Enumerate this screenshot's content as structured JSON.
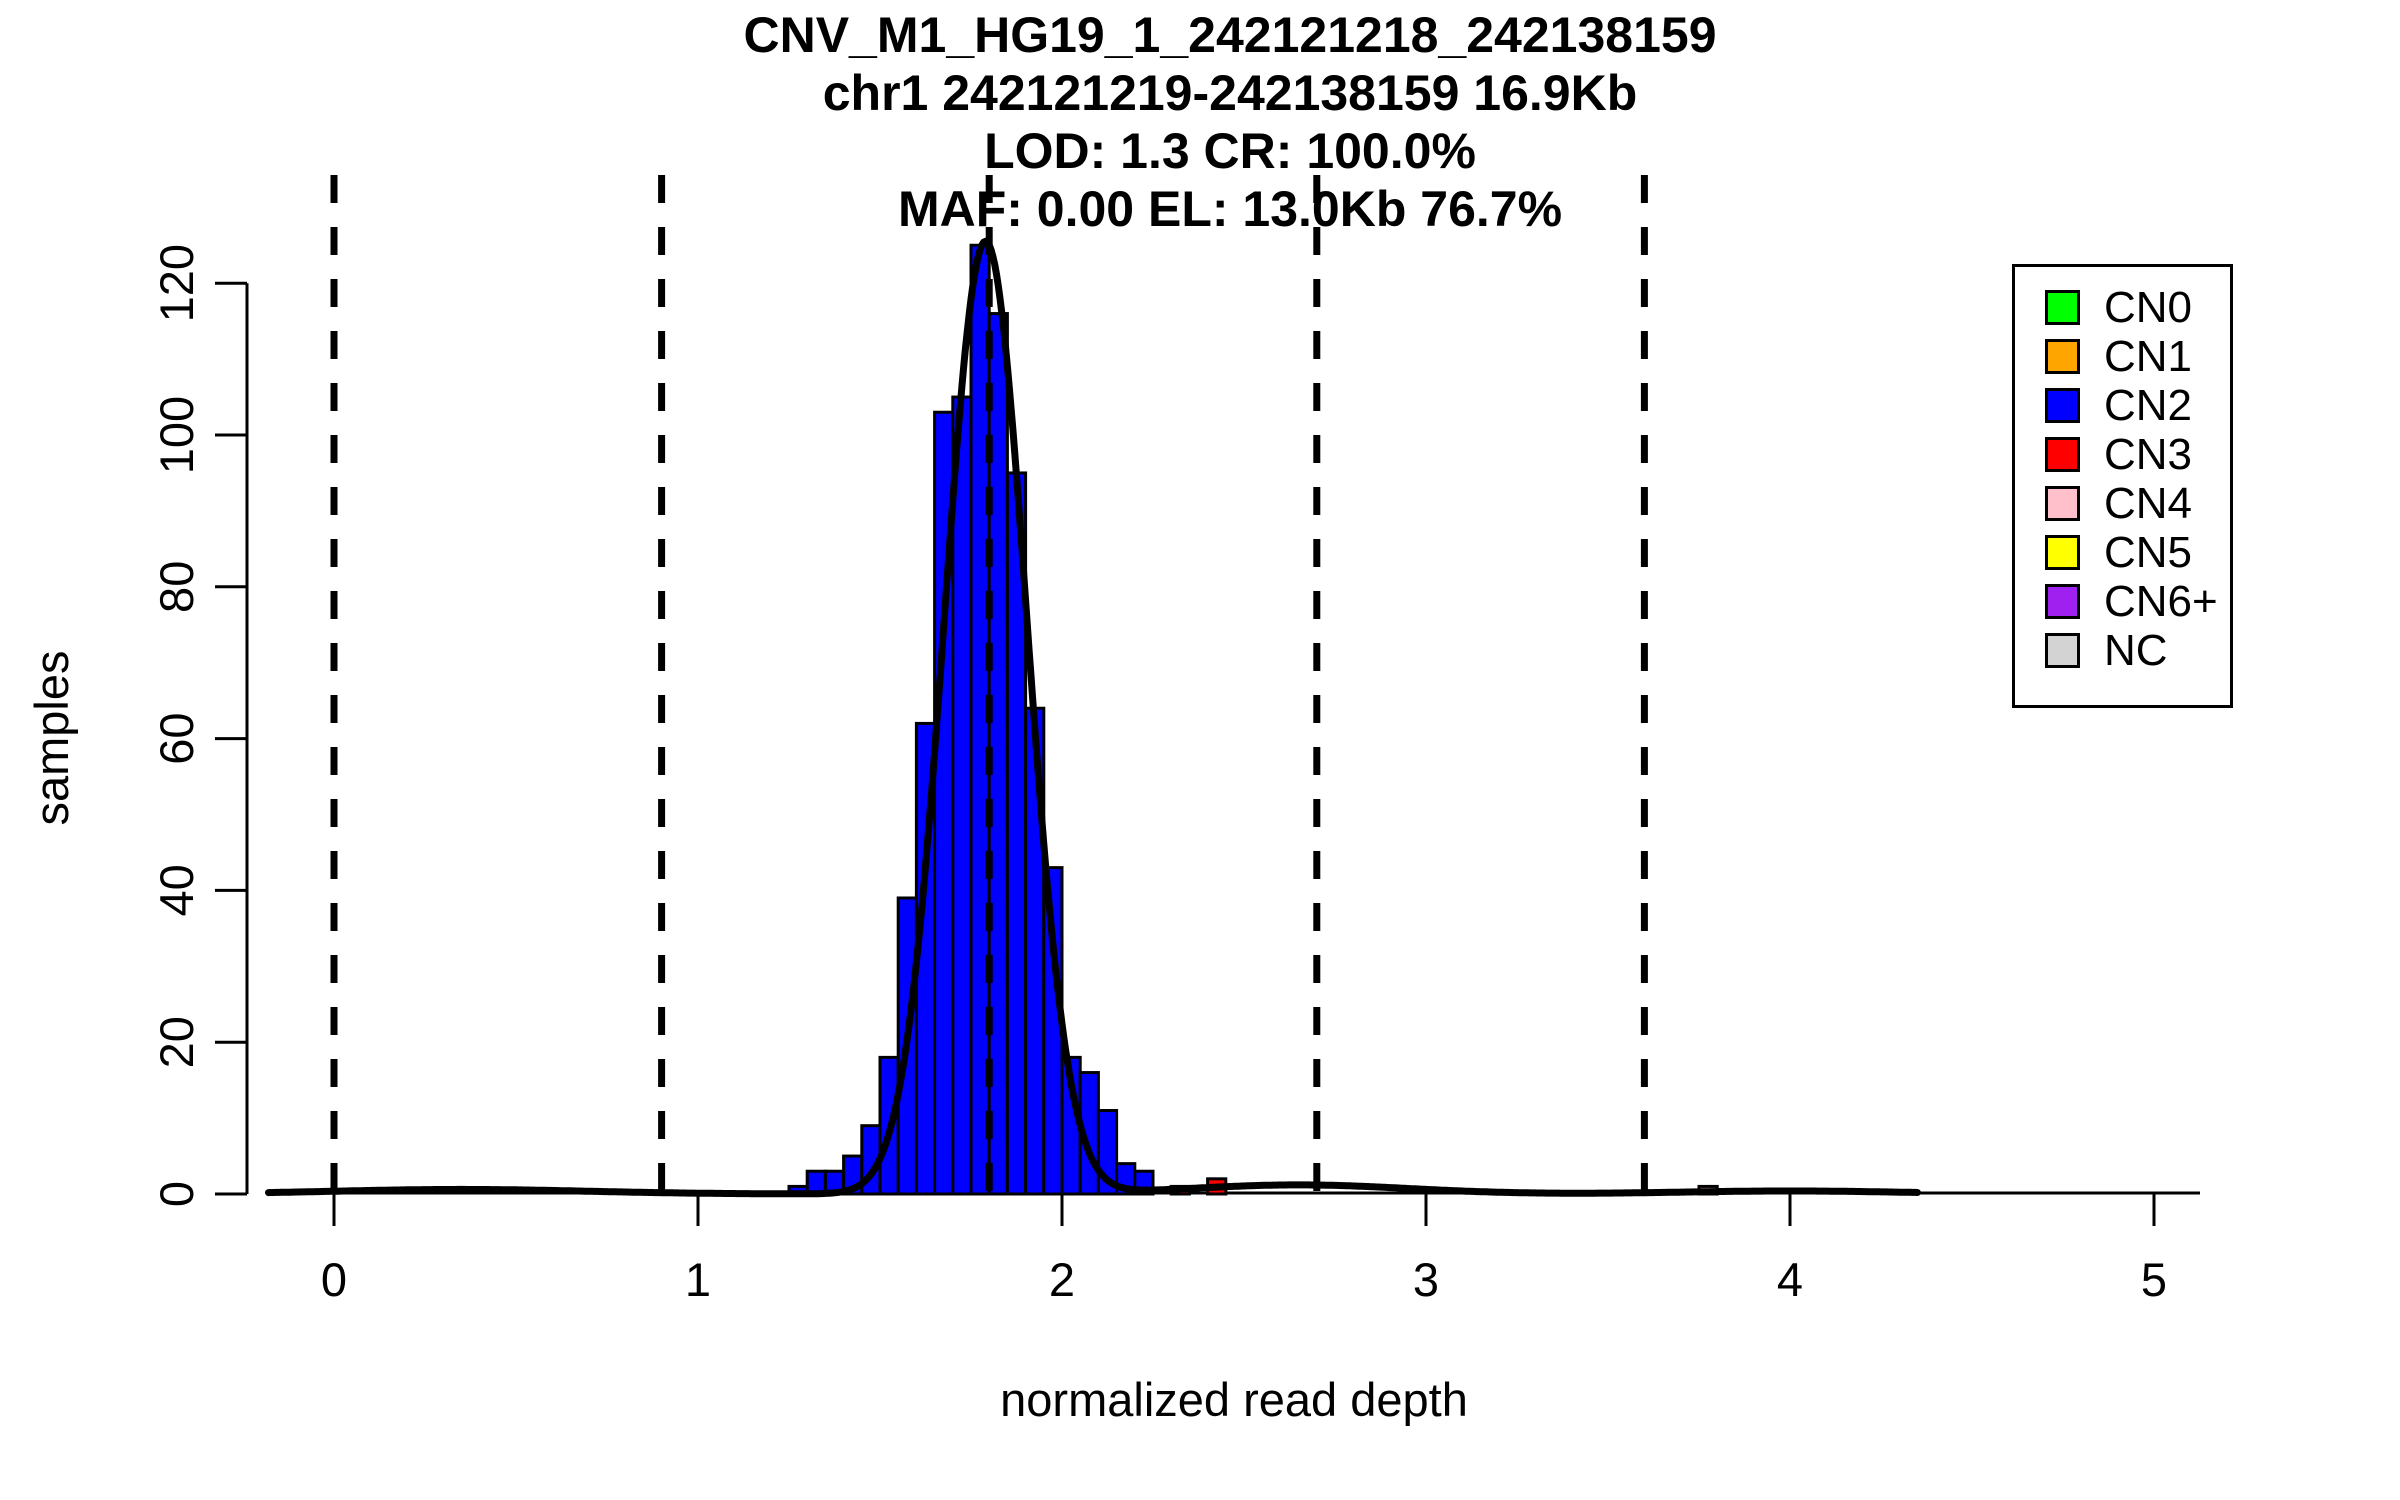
{
  "figure": {
    "title_lines": [
      "CNV_M1_HG19_1_242121218_242138159",
      "chr1 242121219-242138159 16.9Kb",
      "LOD: 1.3 CR: 100.0%",
      "MAF: 0.00 EL: 13.0Kb 76.7%"
    ],
    "xlabel": "normalized read depth",
    "ylabel": "samples",
    "background_color": "#FFFFFF",
    "foreground_color": "#000000"
  },
  "legend": {
    "position": "top-right",
    "items": [
      {
        "label": "CN0",
        "color": "#00FF00"
      },
      {
        "label": "CN1",
        "color": "#FFA500"
      },
      {
        "label": "CN2",
        "color": "#0000FF"
      },
      {
        "label": "CN3",
        "color": "#FF0000"
      },
      {
        "label": "CN4",
        "color": "#FFC0CB"
      },
      {
        "label": "CN5",
        "color": "#FFFF00"
      },
      {
        "label": "CN6+",
        "color": "#A020F0"
      },
      {
        "label": "NC",
        "color": "#D3D3D3"
      }
    ]
  },
  "chart_data": {
    "type": "bar",
    "subtype": "histogram-with-gaussian-fit",
    "title": "CNV_M1_HG19_1_242121218_242138159",
    "subtitle": "chr1 242121219-242138159 16.9Kb LOD: 1.3 CR: 100.0% MAF: 0.00 EL: 13.0Kb 76.7%",
    "xlabel": "normalized read depth",
    "ylabel": "samples",
    "xlim": [
      -0.2,
      5.2
    ],
    "ylim": [
      0,
      130
    ],
    "x_ticks": [
      "0",
      "1",
      "2",
      "3",
      "4",
      "5"
    ],
    "x_tick_values": [
      0,
      1,
      2,
      3,
      4,
      5
    ],
    "y_ticks": [
      "0",
      "20",
      "40",
      "60",
      "80",
      "100",
      "120"
    ],
    "y_tick_values": [
      0,
      20,
      40,
      60,
      80,
      100,
      120
    ],
    "grid": false,
    "legend_position": "top-right",
    "bin_width": 0.05,
    "bars": [
      {
        "x": 1.25,
        "count": 1,
        "cn": "CN2",
        "color": "#0000FF"
      },
      {
        "x": 1.3,
        "count": 3,
        "cn": "CN2",
        "color": "#0000FF"
      },
      {
        "x": 1.35,
        "count": 3,
        "cn": "CN2",
        "color": "#0000FF"
      },
      {
        "x": 1.4,
        "count": 5,
        "cn": "CN2",
        "color": "#0000FF"
      },
      {
        "x": 1.45,
        "count": 9,
        "cn": "CN2",
        "color": "#0000FF"
      },
      {
        "x": 1.5,
        "count": 18,
        "cn": "CN2",
        "color": "#0000FF"
      },
      {
        "x": 1.55,
        "count": 39,
        "cn": "CN2",
        "color": "#0000FF"
      },
      {
        "x": 1.6,
        "count": 62,
        "cn": "CN2",
        "color": "#0000FF"
      },
      {
        "x": 1.65,
        "count": 103,
        "cn": "CN2",
        "color": "#0000FF"
      },
      {
        "x": 1.7,
        "count": 105,
        "cn": "CN2",
        "color": "#0000FF"
      },
      {
        "x": 1.75,
        "count": 125,
        "cn": "CN2",
        "color": "#0000FF"
      },
      {
        "x": 1.8,
        "count": 116,
        "cn": "CN2",
        "color": "#0000FF"
      },
      {
        "x": 1.85,
        "count": 95,
        "cn": "CN2",
        "color": "#0000FF"
      },
      {
        "x": 1.9,
        "count": 64,
        "cn": "CN2",
        "color": "#0000FF"
      },
      {
        "x": 1.95,
        "count": 43,
        "cn": "CN2",
        "color": "#0000FF"
      },
      {
        "x": 2.0,
        "count": 18,
        "cn": "CN2",
        "color": "#0000FF"
      },
      {
        "x": 2.05,
        "count": 16,
        "cn": "CN2",
        "color": "#0000FF"
      },
      {
        "x": 2.1,
        "count": 11,
        "cn": "CN2",
        "color": "#0000FF"
      },
      {
        "x": 2.15,
        "count": 4,
        "cn": "CN2",
        "color": "#0000FF"
      },
      {
        "x": 2.2,
        "count": 3,
        "cn": "CN2",
        "color": "#0000FF"
      },
      {
        "x": 2.3,
        "count": 1,
        "cn": "CN3",
        "color": "#FF0000"
      },
      {
        "x": 2.4,
        "count": 2,
        "cn": "CN3",
        "color": "#FF0000"
      },
      {
        "x": 3.75,
        "count": 1,
        "cn": "CN4",
        "color": "#FFC0CB"
      }
    ],
    "dashed_lines": {
      "values": [
        0,
        0.9,
        1.8,
        2.7,
        3.6
      ],
      "style": "dashed",
      "color": "#000000"
    },
    "fit_curve": {
      "shape": "gaussian",
      "mean": 1.79,
      "sd": 0.113,
      "peak": 125.5,
      "x_start": -0.18,
      "x_end": 4.35,
      "color": "#000000",
      "baseline_bumps": [
        {
          "center": 0.35,
          "sd": 0.35,
          "height": 0.6
        },
        {
          "center": 2.65,
          "sd": 0.3,
          "height": 1.2
        },
        {
          "center": 4.0,
          "sd": 0.3,
          "height": 0.4
        }
      ]
    }
  }
}
